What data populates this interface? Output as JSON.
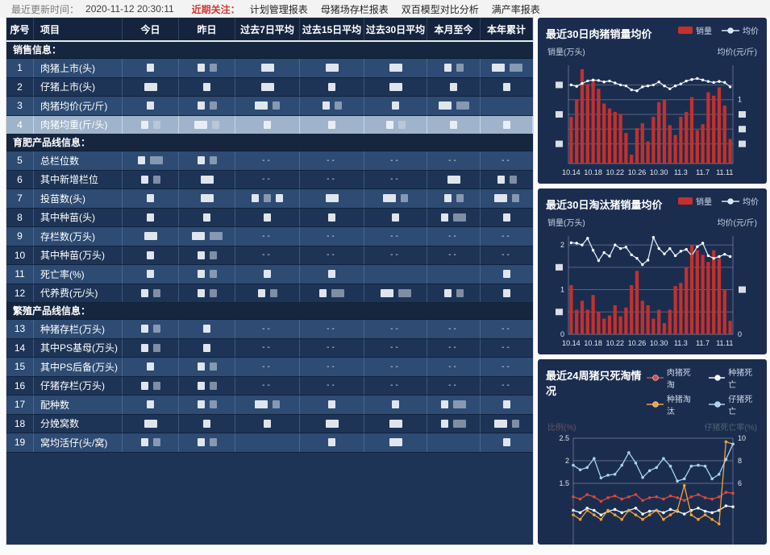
{
  "topbar": {
    "update_label": "最近更新时间：",
    "update_time": "2020-11-12 20:30:11",
    "focus_label": "近期关注：",
    "links": [
      "计划管理报表",
      "母猪场存栏报表",
      "双百模型对比分析",
      "满产率报表"
    ]
  },
  "table": {
    "headers": [
      "序号",
      "项目",
      "今日",
      "昨日",
      "过去7日平均",
      "过去15日平均",
      "过去30日平均",
      "本月至今",
      "本年累计"
    ],
    "sections": [
      {
        "title": "销售信息：",
        "rows": [
          {
            "no": "1",
            "item": "肉猪上市(头)",
            "cells": [
              [
                9
              ],
              [
                9,
                9
              ],
              [
                16
              ],
              [
                16
              ],
              [
                16
              ],
              [
                9,
                9
              ],
              [
                16,
                16
              ]
            ]
          },
          {
            "no": "2",
            "item": "仔猪上市(头)",
            "cells": [
              [
                16
              ],
              [
                9
              ],
              [
                16
              ],
              [
                9
              ],
              [
                16
              ],
              [
                9
              ],
              [
                9
              ]
            ]
          },
          {
            "no": "3",
            "item": "肉猪均价(元/斤)",
            "cells": [
              [
                9
              ],
              [
                9,
                9
              ],
              [
                16,
                9
              ],
              [
                9,
                9
              ],
              [
                9
              ],
              [
                16,
                16
              ],
              []
            ]
          },
          {
            "no": "4",
            "item": "肉猪均重(斤/头)",
            "highlight": true,
            "cells": [
              [
                9,
                9
              ],
              [
                16,
                9
              ],
              [
                9
              ],
              [
                9
              ],
              [
                9,
                9
              ],
              [
                9
              ],
              [
                9
              ]
            ]
          }
        ]
      },
      {
        "title": "育肥产品线信息：",
        "rows": [
          {
            "no": "5",
            "item": "总栏位数",
            "cells": [
              [
                9,
                16
              ],
              [
                9,
                9
              ],
              "--",
              "--",
              "--",
              "--",
              "--"
            ]
          },
          {
            "no": "6",
            "item": "其中新增栏位",
            "cells": [
              [
                9,
                9
              ],
              [
                16
              ],
              "--",
              "--",
              "--",
              [
                16
              ],
              [
                9,
                9
              ]
            ]
          },
          {
            "no": "7",
            "item": "投苗数(头)",
            "cells": [
              [
                9
              ],
              [
                16
              ],
              [
                9,
                9,
                9
              ],
              [
                16
              ],
              [
                16,
                9
              ],
              [
                9,
                9
              ],
              [
                16,
                9
              ]
            ]
          },
          {
            "no": "8",
            "item": "其中种苗(头)",
            "cells": [
              [
                9
              ],
              [
                9
              ],
              [
                9
              ],
              [
                9
              ],
              [
                9
              ],
              [
                9,
                16
              ],
              [
                9
              ]
            ]
          },
          {
            "no": "9",
            "item": "存栏数(万头)",
            "cells": [
              [
                16
              ],
              [
                16,
                16
              ],
              "--",
              "--",
              "--",
              "--",
              "--"
            ]
          },
          {
            "no": "10",
            "item": "其中种苗(万头)",
            "cells": [
              [
                9
              ],
              [
                9,
                9
              ],
              "--",
              "--",
              "--",
              "--",
              "--"
            ]
          },
          {
            "no": "11",
            "item": "死亡率(%)",
            "cells": [
              [
                9
              ],
              [
                9,
                9
              ],
              [
                9
              ],
              [
                9
              ],
              [],
              [],
              [
                9
              ]
            ]
          },
          {
            "no": "12",
            "item": "代养费(元/头)",
            "cells": [
              [
                9,
                9
              ],
              [
                9,
                9
              ],
              [
                9,
                9
              ],
              [
                9,
                16
              ],
              [
                16,
                16
              ],
              [
                9,
                9
              ],
              [
                9
              ]
            ]
          }
        ]
      },
      {
        "title": "繁殖产品线信息：",
        "rows": [
          {
            "no": "13",
            "item": "种猪存栏(万头)",
            "cells": [
              [
                9,
                9
              ],
              [
                9
              ],
              "--",
              "--",
              "--",
              "--",
              "--"
            ]
          },
          {
            "no": "14",
            "item": "其中PS基母(万头)",
            "cells": [
              [
                9,
                9
              ],
              [
                9
              ],
              "--",
              "--",
              "--",
              "--",
              "--"
            ]
          },
          {
            "no": "15",
            "item": "其中PS后备(万头)",
            "cells": [
              [
                9
              ],
              [
                9,
                9
              ],
              "--",
              "--",
              "--",
              "--",
              "--"
            ]
          },
          {
            "no": "16",
            "item": "仔猪存栏(万头)",
            "cells": [
              [
                9,
                9
              ],
              [
                9,
                9
              ],
              "--",
              "--",
              "--",
              "--",
              "--"
            ]
          },
          {
            "no": "17",
            "item": "配种数",
            "cells": [
              [
                9
              ],
              [
                9,
                9
              ],
              [
                16,
                9
              ],
              [
                9
              ],
              [
                9
              ],
              [
                9,
                16
              ],
              [
                9
              ]
            ]
          },
          {
            "no": "18",
            "item": "分娩窝数",
            "cells": [
              [
                16
              ],
              [
                9
              ],
              [
                9
              ],
              [
                16
              ],
              [
                16
              ],
              [
                9,
                16
              ],
              [
                16,
                9
              ]
            ]
          },
          {
            "no": "19",
            "item": "窝均活仔(头/窝)",
            "cells": [
              [
                9,
                9
              ],
              [
                9,
                9
              ],
              [],
              [
                9
              ],
              [
                16
              ],
              [],
              [
                9
              ]
            ]
          }
        ]
      }
    ]
  },
  "chart_data": [
    {
      "type": "bar-line",
      "title": "最近30日肉猪销量均价",
      "legend": [
        {
          "label": "销量",
          "swatch": "bar",
          "color": "#c5302c"
        },
        {
          "label": "均价",
          "swatch": "line",
          "color": "#d7e7f7"
        }
      ],
      "ylabel_left": "销量(万头)",
      "ylabel_right": "均价(元/斤)",
      "x_labels": [
        "10.14",
        "10.18",
        "10.22",
        "10.26",
        "10.30",
        "11.3",
        "11.7",
        "11.11"
      ],
      "x_label_step": 4,
      "n": 30,
      "ylim": [
        0,
        2
      ],
      "gridlines": [
        0.4,
        0.7,
        1.0,
        1.3,
        1.6
      ],
      "left_ticks": [
        {
          "v": 1.6,
          "t": "#"
        },
        {
          "v": 1.0,
          "t": "#"
        },
        {
          "v": 0.4,
          "t": "#"
        }
      ],
      "right_ticks": [
        {
          "v": 1.3,
          "t": "1"
        },
        {
          "v": 1.0,
          "t": "#"
        },
        {
          "v": 0.7,
          "t": "#"
        },
        {
          "v": 0.4,
          "t": "#"
        }
      ],
      "bars": [
        0.95,
        1.3,
        1.92,
        1.62,
        1.68,
        1.52,
        1.22,
        1.12,
        1.05,
        1.0,
        0.62,
        0.18,
        0.72,
        0.82,
        0.45,
        0.95,
        1.25,
        1.3,
        0.78,
        0.58,
        0.95,
        1.05,
        1.35,
        0.68,
        0.8,
        1.45,
        1.38,
        1.55,
        1.18,
        0.5
      ],
      "line": [
        1.6,
        1.57,
        1.63,
        1.68,
        1.7,
        1.69,
        1.66,
        1.68,
        1.64,
        1.6,
        1.58,
        1.5,
        1.48,
        1.56,
        1.58,
        1.6,
        1.66,
        1.58,
        1.52,
        1.58,
        1.62,
        1.68,
        1.71,
        1.73,
        1.7,
        1.67,
        1.65,
        1.67,
        1.65,
        1.56
      ]
    },
    {
      "type": "bar-line",
      "title": "最近30日淘汰猪销量均价",
      "legend": [
        {
          "label": "销量",
          "swatch": "bar",
          "color": "#c5302c"
        },
        {
          "label": "均价",
          "swatch": "line",
          "color": "#d7e7f7"
        }
      ],
      "ylabel_left": "销量(万头)",
      "ylabel_right": "均价(元/斤)",
      "x_labels": [
        "10.14",
        "10.18",
        "10.22",
        "10.26",
        "10.30",
        "11.3",
        "11.7",
        "11.11"
      ],
      "x_label_step": 4,
      "n": 30,
      "ylim": [
        0,
        2.2
      ],
      "gridlines": [
        0.5,
        1.0,
        1.5,
        2.0
      ],
      "left_ticks": [
        {
          "v": 2.0,
          "t": "2"
        },
        {
          "v": 1.5,
          "t": "#"
        },
        {
          "v": 1.0,
          "t": "1"
        },
        {
          "v": 0.5,
          "t": "#"
        },
        {
          "v": 0,
          "t": "0"
        }
      ],
      "right_ticks": [
        {
          "v": 1.0,
          "t": "#"
        },
        {
          "v": 0,
          "t": "0"
        }
      ],
      "marker_index": 22,
      "bars": [
        1.1,
        0.55,
        0.75,
        0.55,
        0.88,
        0.5,
        0.35,
        0.42,
        0.65,
        0.4,
        0.6,
        1.1,
        1.42,
        0.75,
        0.65,
        0.35,
        0.55,
        0.25,
        0.55,
        1.08,
        1.15,
        1.5,
        2.0,
        1.88,
        1.78,
        1.62,
        1.88,
        1.7,
        1.0,
        0.3
      ],
      "line": [
        2.05,
        2.04,
        2.0,
        2.15,
        1.88,
        1.65,
        1.83,
        1.75,
        2.0,
        1.92,
        1.95,
        1.78,
        1.7,
        1.56,
        1.66,
        2.17,
        1.92,
        1.8,
        1.92,
        1.76,
        1.86,
        1.9,
        1.76,
        1.96,
        2.04,
        1.76,
        1.7,
        1.74,
        1.79,
        1.74
      ]
    },
    {
      "type": "multi-line",
      "title": "最近24周猪只死淘情况",
      "legend": [
        {
          "label": "肉猪死淘",
          "swatch": "line",
          "color": "#d94a3d"
        },
        {
          "label": "种猪死亡",
          "swatch": "line",
          "color": "#f2f5f8"
        },
        {
          "label": "种猪淘汰",
          "swatch": "line",
          "color": "#f0a13a"
        },
        {
          "label": "仔猪死亡",
          "swatch": "line",
          "color": "#a6d2f0"
        }
      ],
      "ylabel_left": "比例(%)",
      "ylabel_right": "仔猪死亡率(%)",
      "n": 24,
      "gridlines": [
        1.5,
        2.0,
        2.5
      ],
      "left_ticks": [
        {
          "v": 2.5,
          "t": "2.5"
        },
        {
          "v": 2.0,
          "t": "2"
        },
        {
          "v": 1.5,
          "t": "1.5"
        }
      ],
      "right_ticks": [
        {
          "v": 2.5,
          "t": "10"
        },
        {
          "v": 2.0,
          "t": "8"
        },
        {
          "v": 1.5,
          "t": "6"
        }
      ],
      "series": [
        {
          "name": "肉猪死淘",
          "color": "#d94a3d",
          "values": [
            1.2,
            1.15,
            1.25,
            1.2,
            1.1,
            1.18,
            1.22,
            1.15,
            1.2,
            1.25,
            1.12,
            1.18,
            1.2,
            1.15,
            1.22,
            1.18,
            1.12,
            1.2,
            1.25,
            1.18,
            1.15,
            1.2,
            1.3,
            1.28
          ]
        },
        {
          "name": "种猪死亡",
          "color": "#f2f5f8",
          "values": [
            0.9,
            0.85,
            0.95,
            0.9,
            0.8,
            0.88,
            0.92,
            0.85,
            0.9,
            0.95,
            0.82,
            0.88,
            0.9,
            0.85,
            0.92,
            0.88,
            0.82,
            0.9,
            0.95,
            0.88,
            0.85,
            0.9,
            1.0,
            0.98
          ]
        },
        {
          "name": "种猪淘汰",
          "color": "#f0a13a",
          "values": [
            0.8,
            0.7,
            0.9,
            0.8,
            0.7,
            0.9,
            0.8,
            0.7,
            0.9,
            0.8,
            0.7,
            0.8,
            0.9,
            0.7,
            0.8,
            0.9,
            1.45,
            0.8,
            0.7,
            0.8,
            0.7,
            0.6,
            2.42,
            2.37
          ]
        },
        {
          "name": "仔猪死亡",
          "color": "#a6d2f0",
          "values": [
            1.9,
            1.8,
            1.85,
            2.05,
            1.62,
            1.68,
            1.7,
            1.9,
            2.18,
            1.95,
            1.63,
            1.78,
            1.85,
            2.05,
            1.88,
            1.55,
            1.6,
            1.88,
            1.9,
            1.88,
            1.6,
            1.7,
            2.03,
            2.37
          ]
        }
      ]
    }
  ],
  "colors": {
    "bar_red": "#c5302c",
    "line_light": "#d7e7f7",
    "card_bg": "#1b2d4f",
    "header_bg": "#15243e",
    "section_bg": "#16263f",
    "row_odd": "#2d4b73",
    "row_even": "#1d3456",
    "row_highlight": "#9fb3cb",
    "accent_red": "#d43a30"
  }
}
